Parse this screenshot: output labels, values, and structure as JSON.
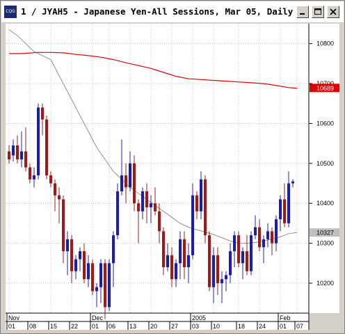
{
  "window": {
    "title": "1 / JYAH5 - Japanese Yen-All Sessions, Mar 05, Daily",
    "icon": "chart-window-icon",
    "controls": [
      "minimize-icon",
      "maximize-icon",
      "close-icon"
    ]
  },
  "chart_data": {
    "type": "candlestick",
    "title": "1 / JYAH5 - Japanese Yen-All Sessions, Mar 05, Daily",
    "y_ticks": [
      "10800",
      "10700",
      "10600",
      "10500",
      "10400",
      "10300",
      "10200"
    ],
    "y_tick_values": [
      10800,
      10700,
      10600,
      10500,
      10400,
      10300,
      10200
    ],
    "ylim": [
      10125,
      10850
    ],
    "x_ticks": [
      "01",
      "08",
      "15",
      "22",
      "01",
      "06",
      "13",
      "20",
      "27",
      "03",
      "10",
      "18",
      "24",
      "01",
      "07"
    ],
    "x_tick_index": [
      0,
      5,
      10,
      15,
      20,
      24,
      29,
      34,
      39,
      44,
      49,
      55,
      60,
      65,
      69
    ],
    "x_groups": [
      {
        "label": "Nov",
        "index": 0
      },
      {
        "label": "Dec",
        "index": 20
      },
      {
        "label": "2005",
        "index": 44
      },
      {
        "label": "Feb",
        "index": 65
      }
    ],
    "price_tags": [
      {
        "value": "10689",
        "v": 10689,
        "color": "#e00000",
        "text_color": "#ffffff"
      },
      {
        "value": "10327",
        "v": 10327,
        "color": "#c0c0c0",
        "text_color": "#000000"
      }
    ],
    "colors": {
      "up": "#1c1cb4",
      "down": "#a01818",
      "ma_long": "#e00000",
      "ma_short": "#909090"
    },
    "candles": [
      [
        10530,
        10545,
        10500,
        10510
      ],
      [
        10520,
        10560,
        10505,
        10545
      ],
      [
        10545,
        10570,
        10500,
        10510
      ],
      [
        10510,
        10580,
        10490,
        10530
      ],
      [
        10530,
        10590,
        10480,
        10490
      ],
      [
        10490,
        10500,
        10450,
        10460
      ],
      [
        10460,
        10490,
        10440,
        10470
      ],
      [
        10470,
        10650,
        10460,
        10640
      ],
      [
        10640,
        10650,
        10570,
        10610
      ],
      [
        10610,
        10620,
        10460,
        10470
      ],
      [
        10470,
        10480,
        10440,
        10450
      ],
      [
        10450,
        10460,
        10380,
        10420
      ],
      [
        10420,
        10440,
        10350,
        10410
      ],
      [
        10410,
        10420,
        10250,
        10280
      ],
      [
        10280,
        10330,
        10220,
        10310
      ],
      [
        10310,
        10320,
        10200,
        10230
      ],
      [
        10230,
        10270,
        10210,
        10260
      ],
      [
        10260,
        10290,
        10230,
        10280
      ],
      [
        10280,
        10300,
        10200,
        10210
      ],
      [
        10210,
        10270,
        10190,
        10250
      ],
      [
        10250,
        10260,
        10170,
        10180
      ],
      [
        10180,
        10200,
        10140,
        10190
      ],
      [
        10190,
        10260,
        10150,
        10250
      ],
      [
        10250,
        10260,
        10110,
        10140
      ],
      [
        10140,
        10260,
        10130,
        10250
      ],
      [
        10250,
        10330,
        10190,
        10320
      ],
      [
        10320,
        10450,
        10310,
        10430
      ],
      [
        10430,
        10560,
        10420,
        10470
      ],
      [
        10470,
        10500,
        10400,
        10440
      ],
      [
        10440,
        10530,
        10430,
        10500
      ],
      [
        10500,
        10520,
        10380,
        10400
      ],
      [
        10400,
        10410,
        10300,
        10380
      ],
      [
        10380,
        10440,
        10360,
        10430
      ],
      [
        10430,
        10450,
        10350,
        10390
      ],
      [
        10390,
        10420,
        10350,
        10400
      ],
      [
        10400,
        10440,
        10370,
        10380
      ],
      [
        10380,
        10400,
        10300,
        10330
      ],
      [
        10330,
        10340,
        10220,
        10240
      ],
      [
        10240,
        10300,
        10230,
        10270
      ],
      [
        10270,
        10290,
        10190,
        10210
      ],
      [
        10210,
        10260,
        10190,
        10250
      ],
      [
        10250,
        10330,
        10210,
        10310
      ],
      [
        10310,
        10330,
        10210,
        10240
      ],
      [
        10240,
        10300,
        10200,
        10270
      ],
      [
        10270,
        10450,
        10260,
        10420
      ],
      [
        10420,
        10430,
        10360,
        10380
      ],
      [
        10380,
        10480,
        10360,
        10460
      ],
      [
        10460,
        10470,
        10300,
        10320
      ],
      [
        10320,
        10330,
        10180,
        10190
      ],
      [
        10190,
        10290,
        10150,
        10270
      ],
      [
        10270,
        10290,
        10170,
        10200
      ],
      [
        10200,
        10230,
        10150,
        10210
      ],
      [
        10210,
        10230,
        10180,
        10220
      ],
      [
        10220,
        10300,
        10200,
        10280
      ],
      [
        10280,
        10330,
        10240,
        10320
      ],
      [
        10320,
        10330,
        10240,
        10250
      ],
      [
        10250,
        10290,
        10210,
        10280
      ],
      [
        10280,
        10320,
        10220,
        10230
      ],
      [
        10230,
        10330,
        10220,
        10320
      ],
      [
        10320,
        10370,
        10310,
        10340
      ],
      [
        10340,
        10360,
        10280,
        10290
      ],
      [
        10290,
        10320,
        10250,
        10310
      ],
      [
        10310,
        10350,
        10290,
        10330
      ],
      [
        10330,
        10340,
        10270,
        10300
      ],
      [
        10300,
        10370,
        10280,
        10360
      ],
      [
        10360,
        10420,
        10330,
        10410
      ],
      [
        10410,
        10450,
        10340,
        10350
      ],
      [
        10350,
        10480,
        10340,
        10450
      ],
      [
        10450,
        10460,
        10440,
        10455
      ]
    ],
    "ma_long": [
      [
        0,
        10775
      ],
      [
        3,
        10775
      ],
      [
        7,
        10778
      ],
      [
        10,
        10778
      ],
      [
        13,
        10777
      ],
      [
        16,
        10773
      ],
      [
        19,
        10770
      ],
      [
        22,
        10766
      ],
      [
        25,
        10760
      ],
      [
        28,
        10752
      ],
      [
        31,
        10745
      ],
      [
        34,
        10738
      ],
      [
        37,
        10728
      ],
      [
        40,
        10718
      ],
      [
        43,
        10712
      ],
      [
        46,
        10710
      ],
      [
        49,
        10708
      ],
      [
        52,
        10706
      ],
      [
        55,
        10704
      ],
      [
        58,
        10702
      ],
      [
        61,
        10700
      ],
      [
        64,
        10695
      ],
      [
        67,
        10690
      ],
      [
        69,
        10688
      ]
    ],
    "ma_short": [
      [
        0,
        10835
      ],
      [
        2,
        10820
      ],
      [
        4,
        10800
      ],
      [
        6,
        10780
      ],
      [
        8,
        10770
      ],
      [
        10,
        10760
      ],
      [
        11,
        10740
      ],
      [
        13,
        10700
      ],
      [
        15,
        10660
      ],
      [
        17,
        10620
      ],
      [
        19,
        10580
      ],
      [
        21,
        10540
      ],
      [
        23,
        10510
      ],
      [
        25,
        10480
      ],
      [
        27,
        10460
      ],
      [
        29,
        10440
      ],
      [
        31,
        10425
      ],
      [
        33,
        10410
      ],
      [
        35,
        10395
      ],
      [
        37,
        10380
      ],
      [
        39,
        10365
      ],
      [
        41,
        10350
      ],
      [
        43,
        10340
      ],
      [
        45,
        10334
      ],
      [
        47,
        10328
      ],
      [
        49,
        10322
      ],
      [
        51,
        10314
      ],
      [
        53,
        10306
      ],
      [
        55,
        10300
      ],
      [
        57,
        10300
      ],
      [
        59,
        10302
      ],
      [
        61,
        10306
      ],
      [
        63,
        10310
      ],
      [
        65,
        10316
      ],
      [
        67,
        10324
      ],
      [
        69,
        10327
      ]
    ]
  }
}
